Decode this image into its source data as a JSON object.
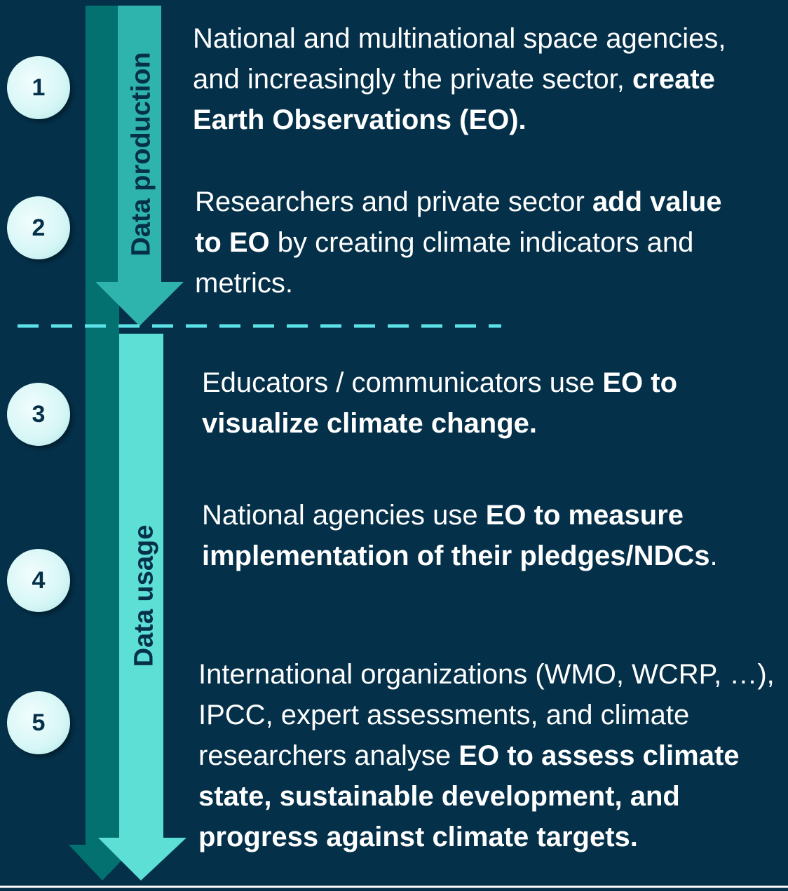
{
  "phases": [
    {
      "label": "Data production"
    },
    {
      "label": "Data usage"
    }
  ],
  "steps": [
    {
      "number": "1",
      "segments": [
        {
          "text": "National and multinational space agencies, and increasingly the private sector, ",
          "bold": false
        },
        {
          "text": "create Earth Observations (EO).",
          "bold": true
        }
      ]
    },
    {
      "number": "2",
      "segments": [
        {
          "text": "Researchers and private sector ",
          "bold": false
        },
        {
          "text": "add value to EO",
          "bold": true
        },
        {
          "text": " by creating climate indicators and metrics.",
          "bold": false
        }
      ]
    },
    {
      "number": "3",
      "segments": [
        {
          "text": "Educators / communicators use ",
          "bold": false
        },
        {
          "text": "EO to visualize climate change.",
          "bold": true
        }
      ]
    },
    {
      "number": "4",
      "segments": [
        {
          "text": "National agencies use ",
          "bold": false
        },
        {
          "text": "EO to measure implementation of their pledges/NDCs",
          "bold": true
        },
        {
          "text": ".",
          "bold": false
        }
      ]
    },
    {
      "number": "5",
      "segments": [
        {
          "text": "International organizations (WMO, WCRP, …), IPCC, expert assessments, and climate researchers analyse ",
          "bold": false
        },
        {
          "text": "EO to assess climate state, sustainable development, and progress against climate targets.",
          "bold": true
        }
      ]
    }
  ]
}
